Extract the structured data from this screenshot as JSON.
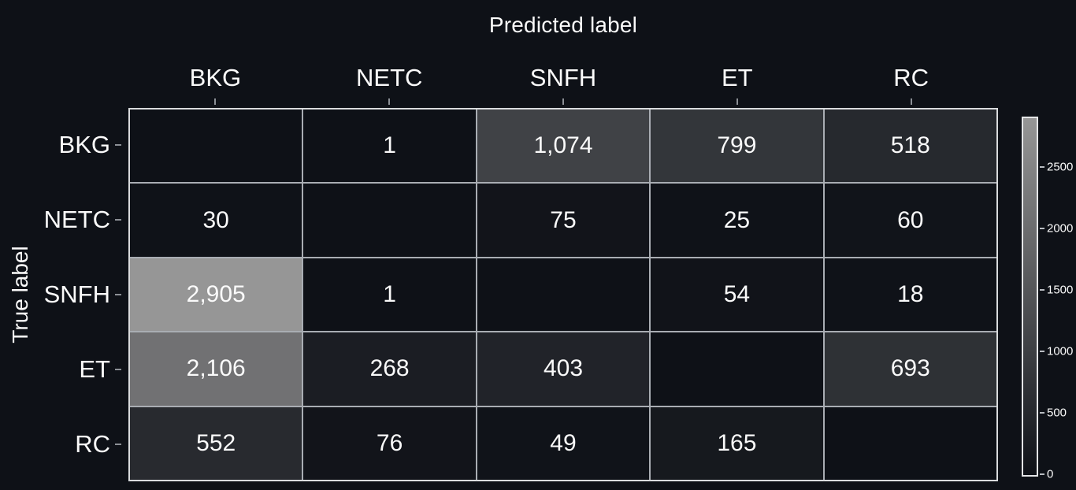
{
  "background": "#0e1117",
  "text_color": "#fafafa",
  "chart_data": {
    "type": "heatmap",
    "title": "",
    "xlabel": "Predicted label",
    "ylabel": "True label",
    "categories": [
      "BKG",
      "NETC",
      "SNFH",
      "ET",
      "RC"
    ],
    "rows": [
      {
        "label": "BKG",
        "values": [
          null,
          1,
          1074,
          799,
          518
        ]
      },
      {
        "label": "NETC",
        "values": [
          30,
          null,
          75,
          25,
          60
        ]
      },
      {
        "label": "SNFH",
        "values": [
          2905,
          1,
          null,
          54,
          18
        ]
      },
      {
        "label": "ET",
        "values": [
          2106,
          268,
          403,
          null,
          693
        ]
      },
      {
        "label": "RC",
        "values": [
          552,
          76,
          49,
          165,
          null
        ]
      }
    ],
    "value_format": "thousands-comma",
    "blank_cells": "diagonal",
    "colorscale": {
      "min_value": 0,
      "max_value": 2905,
      "min_color": "#0e1117",
      "max_color": "#969696"
    },
    "colorbar_ticks": [
      2500,
      2000,
      1500,
      1000,
      500,
      0
    ],
    "colorbar_position": "right",
    "grid": true,
    "grid_color": "#a9adb3",
    "axis_title_top": true
  }
}
